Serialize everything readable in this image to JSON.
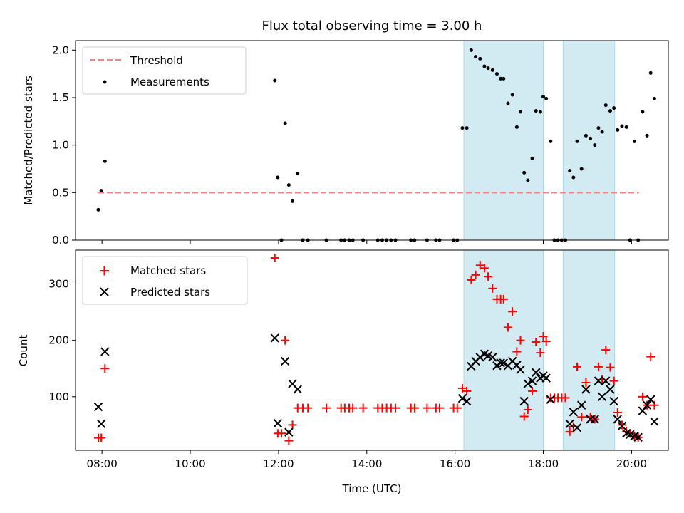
{
  "chart_data": [
    {
      "type": "scatter",
      "title": "Flux total observing time = 3.00 h",
      "ylabel": "Matched/Predicted stars",
      "xlabel": "",
      "xlim": [
        "07:24",
        "20:50"
      ],
      "ylim": [
        0,
        2.1
      ],
      "yticks": [
        "0.0",
        "0.5",
        "1.0",
        "1.5",
        "2.0"
      ],
      "legend_placement": "top-left",
      "grid": false,
      "shaded_spans": [
        [
          "16:12",
          "18:00"
        ],
        [
          "18:27",
          "19:37"
        ]
      ],
      "shade_color": "#add8e6",
      "threshold": {
        "name": "Threshold",
        "value": 0.5,
        "x_range": [
          "07:55",
          "20:10"
        ],
        "color": "#ff7f7f"
      },
      "series": [
        {
          "name": "Measurements",
          "color": "#000000",
          "points": [
            [
              "07:55",
              0.32
            ],
            [
              "07:59",
              0.52
            ],
            [
              "08:04",
              0.83
            ],
            [
              "11:55",
              1.68
            ],
            [
              "11:59",
              0.66
            ],
            [
              "12:04",
              0.0
            ],
            [
              "12:09",
              1.23
            ],
            [
              "12:14",
              0.58
            ],
            [
              "12:19",
              0.41
            ],
            [
              "12:26",
              0.7
            ],
            [
              "12:33",
              0.0
            ],
            [
              "12:40",
              0.0
            ],
            [
              "13:05",
              0.0
            ],
            [
              "13:25",
              0.0
            ],
            [
              "13:30",
              0.0
            ],
            [
              "13:36",
              0.0
            ],
            [
              "13:41",
              0.0
            ],
            [
              "13:55",
              0.0
            ],
            [
              "14:15",
              0.0
            ],
            [
              "14:21",
              0.0
            ],
            [
              "14:27",
              0.0
            ],
            [
              "14:33",
              0.0
            ],
            [
              "14:39",
              0.0
            ],
            [
              "15:00",
              0.0
            ],
            [
              "15:05",
              0.0
            ],
            [
              "15:22",
              0.0
            ],
            [
              "15:34",
              0.0
            ],
            [
              "15:39",
              0.0
            ],
            [
              "15:58",
              0.0
            ],
            [
              "16:03",
              0.0
            ],
            [
              "16:10",
              1.18
            ],
            [
              "16:16",
              1.18
            ],
            [
              "16:22",
              2.0
            ],
            [
              "16:28",
              1.93
            ],
            [
              "16:34",
              1.91
            ],
            [
              "16:40",
              1.83
            ],
            [
              "16:45",
              1.81
            ],
            [
              "16:51",
              1.79
            ],
            [
              "16:57",
              1.75
            ],
            [
              "17:02",
              1.7
            ],
            [
              "17:06",
              1.7
            ],
            [
              "17:12",
              1.44
            ],
            [
              "17:18",
              1.53
            ],
            [
              "17:24",
              1.19
            ],
            [
              "17:29",
              1.35
            ],
            [
              "17:34",
              0.71
            ],
            [
              "17:39",
              0.63
            ],
            [
              "17:45",
              0.86
            ],
            [
              "17:50",
              1.36
            ],
            [
              "17:56",
              1.35
            ],
            [
              "18:00",
              1.51
            ],
            [
              "18:04",
              1.49
            ],
            [
              "18:10",
              1.04
            ],
            [
              "18:15",
              0.0
            ],
            [
              "18:20",
              0.0
            ],
            [
              "18:25",
              0.0
            ],
            [
              "18:30",
              0.0
            ],
            [
              "18:36",
              0.73
            ],
            [
              "18:41",
              0.66
            ],
            [
              "18:46",
              1.04
            ],
            [
              "18:52",
              0.75
            ],
            [
              "18:58",
              1.1
            ],
            [
              "19:04",
              1.07
            ],
            [
              "19:10",
              1.0
            ],
            [
              "19:15",
              1.18
            ],
            [
              "19:20",
              1.14
            ],
            [
              "19:25",
              1.42
            ],
            [
              "19:31",
              1.36
            ],
            [
              "19:36",
              1.39
            ],
            [
              "19:41",
              1.16
            ],
            [
              "19:47",
              1.2
            ],
            [
              "19:53",
              1.19
            ],
            [
              "19:58",
              0.0
            ],
            [
              "20:04",
              1.04
            ],
            [
              "20:09",
              0.0
            ],
            [
              "20:15",
              1.35
            ],
            [
              "20:21",
              1.1
            ],
            [
              "20:26",
              1.76
            ],
            [
              "20:31",
              1.49
            ]
          ]
        }
      ]
    },
    {
      "type": "scatter",
      "title": "",
      "ylabel": "Count",
      "xlabel": "Time (UTC)",
      "xlim": [
        "07:24",
        "20:50"
      ],
      "ylim": [
        5,
        360
      ],
      "yticks": [
        "100",
        "200",
        "300"
      ],
      "xticks": [
        "08:00",
        "10:00",
        "12:00",
        "14:00",
        "16:00",
        "18:00",
        "20:00"
      ],
      "legend_placement": "top-left",
      "grid": false,
      "shaded_spans": [
        [
          "16:12",
          "18:00"
        ],
        [
          "18:27",
          "19:37"
        ]
      ],
      "shade_color": "#add8e6",
      "series": [
        {
          "name": "Matched stars",
          "marker": "+",
          "color": "#ff0000",
          "points": [
            [
              "07:55",
              27
            ],
            [
              "07:59",
              27
            ],
            [
              "08:04",
              150
            ],
            [
              "11:55",
              346
            ],
            [
              "11:59",
              35
            ],
            [
              "12:04",
              35
            ],
            [
              "12:09",
              200
            ],
            [
              "12:14",
              22
            ],
            [
              "12:19",
              50
            ],
            [
              "12:26",
              80
            ],
            [
              "12:33",
              80
            ],
            [
              "12:40",
              80
            ],
            [
              "13:05",
              80
            ],
            [
              "13:25",
              80
            ],
            [
              "13:30",
              80
            ],
            [
              "13:36",
              80
            ],
            [
              "13:41",
              80
            ],
            [
              "13:55",
              80
            ],
            [
              "14:15",
              80
            ],
            [
              "14:21",
              80
            ],
            [
              "14:27",
              80
            ],
            [
              "14:33",
              80
            ],
            [
              "14:39",
              80
            ],
            [
              "15:00",
              80
            ],
            [
              "15:05",
              80
            ],
            [
              "15:22",
              80
            ],
            [
              "15:34",
              80
            ],
            [
              "15:39",
              80
            ],
            [
              "15:58",
              80
            ],
            [
              "16:03",
              80
            ],
            [
              "16:10",
              115
            ],
            [
              "16:16",
              110
            ],
            [
              "16:22",
              307
            ],
            [
              "16:28",
              316
            ],
            [
              "16:34",
              333
            ],
            [
              "16:40",
              328
            ],
            [
              "16:45",
              313
            ],
            [
              "16:51",
              292
            ],
            [
              "16:57",
              273
            ],
            [
              "17:02",
              273
            ],
            [
              "17:06",
              273
            ],
            [
              "17:12",
              223
            ],
            [
              "17:18",
              251
            ],
            [
              "17:24",
              180
            ],
            [
              "17:29",
              200
            ],
            [
              "17:34",
              65
            ],
            [
              "17:39",
              77
            ],
            [
              "17:45",
              110
            ],
            [
              "17:50",
              197
            ],
            [
              "17:56",
              178
            ],
            [
              "18:00",
              207
            ],
            [
              "18:04",
              198
            ],
            [
              "18:10",
              98
            ],
            [
              "18:15",
              98
            ],
            [
              "18:20",
              98
            ],
            [
              "18:25",
              98
            ],
            [
              "18:30",
              98
            ],
            [
              "18:36",
              38
            ],
            [
              "18:41",
              47
            ],
            [
              "18:46",
              153
            ],
            [
              "18:52",
              64
            ],
            [
              "18:58",
              125
            ],
            [
              "19:04",
              64
            ],
            [
              "19:10",
              60
            ],
            [
              "19:15",
              153
            ],
            [
              "19:20",
              130
            ],
            [
              "19:25",
              183
            ],
            [
              "19:31",
              152
            ],
            [
              "19:36",
              128
            ],
            [
              "19:41",
              72
            ],
            [
              "19:47",
              50
            ],
            [
              "19:53",
              38
            ],
            [
              "19:58",
              35
            ],
            [
              "20:04",
              30
            ],
            [
              "20:09",
              28
            ],
            [
              "20:15",
              100
            ],
            [
              "20:21",
              85
            ],
            [
              "20:26",
              171
            ],
            [
              "20:31",
              85
            ]
          ]
        },
        {
          "name": "Predicted stars",
          "marker": "x",
          "color": "#000000",
          "points": [
            [
              "07:55",
              82
            ],
            [
              "07:59",
              52
            ],
            [
              "08:04",
              180
            ],
            [
              "11:55",
              204
            ],
            [
              "11:59",
              53
            ],
            [
              "12:09",
              163
            ],
            [
              "12:14",
              37
            ],
            [
              "12:19",
              123
            ],
            [
              "12:26",
              113
            ],
            [
              "16:10",
              97
            ],
            [
              "16:16",
              92
            ],
            [
              "16:22",
              154
            ],
            [
              "16:28",
              163
            ],
            [
              "16:34",
              170
            ],
            [
              "16:40",
              176
            ],
            [
              "16:45",
              173
            ],
            [
              "16:51",
              170
            ],
            [
              "16:57",
              155
            ],
            [
              "17:02",
              160
            ],
            [
              "17:06",
              160
            ],
            [
              "17:12",
              155
            ],
            [
              "17:18",
              163
            ],
            [
              "17:24",
              156
            ],
            [
              "17:29",
              148
            ],
            [
              "17:34",
              92
            ],
            [
              "17:39",
              123
            ],
            [
              "17:45",
              128
            ],
            [
              "17:50",
              143
            ],
            [
              "17:56",
              133
            ],
            [
              "18:00",
              137
            ],
            [
              "18:04",
              133
            ],
            [
              "18:10",
              95
            ],
            [
              "18:36",
              52
            ],
            [
              "18:41",
              73
            ],
            [
              "18:46",
              45
            ],
            [
              "18:52",
              85
            ],
            [
              "18:58",
              113
            ],
            [
              "19:04",
              60
            ],
            [
              "19:10",
              60
            ],
            [
              "19:15",
              128
            ],
            [
              "19:20",
              100
            ],
            [
              "19:25",
              128
            ],
            [
              "19:31",
              113
            ],
            [
              "19:36",
              92
            ],
            [
              "19:41",
              60
            ],
            [
              "19:47",
              48
            ],
            [
              "19:53",
              35
            ],
            [
              "19:58",
              33
            ],
            [
              "20:04",
              30
            ],
            [
              "20:09",
              28
            ],
            [
              "20:15",
              75
            ],
            [
              "20:21",
              85
            ],
            [
              "20:26",
              95
            ],
            [
              "20:31",
              56
            ]
          ]
        }
      ]
    }
  ]
}
